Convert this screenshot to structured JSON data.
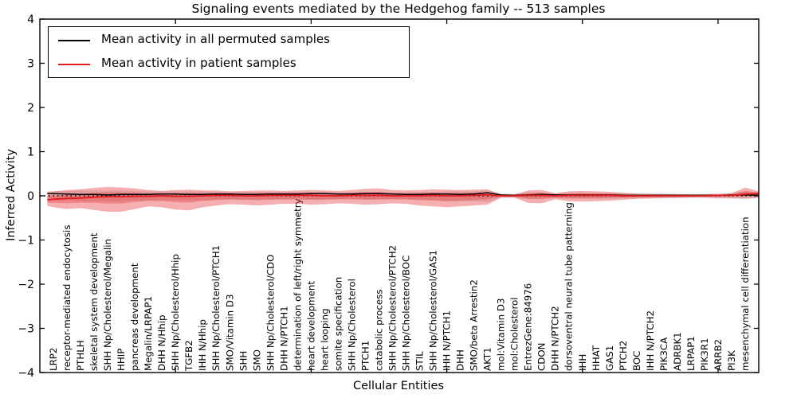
{
  "title": "Signaling events mediated by the Hedgehog family -- 513 samples",
  "chart_data": {
    "type": "line",
    "title": "Signaling events mediated by the Hedgehog family -- 513 samples",
    "xlabel": "Cellular Entities",
    "ylabel": "Inferred Activity",
    "ylim": [
      -4,
      4
    ],
    "xlim": [
      0,
      53
    ],
    "yticks": [
      4,
      3,
      2,
      1,
      0,
      -1,
      -2,
      -3,
      -4
    ],
    "x_major_ticks": [
      10,
      20,
      30,
      40,
      50
    ],
    "grid": false,
    "legend_position": "upper left",
    "legend": [
      {
        "label": "Mean activity in all permuted samples",
        "color": "#000000"
      },
      {
        "label": "Mean activity in patient samples",
        "color": "#e31a1c"
      }
    ],
    "colors": {
      "permuted_line": "#000000",
      "patient_line": "#e31a1c",
      "patient_band": "rgba(227,26,28,0.35)",
      "patient_band_inner": "rgba(227,26,28,0.28)",
      "permuted_band": "rgba(110,110,110,0.18)",
      "zero_line": "#000000"
    },
    "categories": [
      "LRP2",
      "receptor-mediated endocytosis",
      "PTHLH",
      "skeletal system development",
      "SHH Np/Cholesterol/Megalin",
      "HHIP",
      "pancreas development",
      "Megalin/LRPAP1",
      "DHH N/Hhip",
      "SHH Np/Cholesterol/Hhip",
      "TGFB2",
      "IHH N/Hhip",
      "SHH Np/Cholesterol/PTCH1",
      "SMO/Vitamin D3",
      "SHH",
      "SMO",
      "SHH Np/Cholesterol/CDO",
      "DHH N/PTCH1",
      "determination of left/right symmetry",
      "heart development",
      "heart looping",
      "somite specification",
      "SHH Np/Cholesterol",
      "PTCH1",
      "catabolic process",
      "SHH Np/Cholesterol/PTCH2",
      "SHH Np/Cholesterol/BOC",
      "STIL",
      "SHH Np/Cholesterol/GAS1",
      "IHH N/PTCH1",
      "DHH",
      "SMO/beta Arrestin2",
      "AKT1",
      "mol:Vitamin D3",
      "mol:Cholesterol",
      "EntrezGene:84976",
      "CDON",
      "DHH N/PTCH2",
      "dorsoventral neural tube patterning",
      "IHH",
      "HHAT",
      "GAS1",
      "PTCH2",
      "BOC",
      "IHH N/PTCH2",
      "PIK3CA",
      "ADRBK1",
      "LRPAP1",
      "PIK3R1",
      "ARRB2",
      "PI3K",
      "mesenchymal cell differentiation"
    ],
    "series": [
      {
        "name": "Mean activity in all permuted samples",
        "values": [
          0.05,
          0.04,
          0.03,
          0.03,
          0.02,
          0.03,
          0.03,
          0.03,
          0.04,
          0.04,
          0.03,
          0.03,
          0.04,
          0.04,
          0.03,
          0.03,
          0.04,
          0.04,
          0.04,
          0.05,
          0.05,
          0.04,
          0.04,
          0.05,
          0.05,
          0.04,
          0.03,
          0.03,
          0.04,
          0.04,
          0.03,
          0.04,
          0.07,
          0.02,
          0.01,
          0.02,
          0.03,
          0.02,
          0.02,
          0.02,
          0.02,
          0.02,
          0.01,
          0.01,
          0.01,
          0.01,
          0.01,
          0.01,
          0.01,
          0.01,
          0.02,
          0.02
        ]
      },
      {
        "name": "Mean activity in patient samples",
        "values": [
          -0.08,
          -0.06,
          -0.05,
          -0.03,
          -0.02,
          -0.02,
          -0.01,
          -0.01,
          0,
          -0.01,
          -0.01,
          0,
          0.01,
          0.01,
          0,
          0,
          0.01,
          0.01,
          0.01,
          0.01,
          0,
          0,
          0.01,
          0.01,
          0.01,
          0,
          0,
          0,
          0.01,
          0,
          0,
          0.01,
          0.02,
          0,
          0,
          0.01,
          0.01,
          0,
          0.01,
          0.01,
          0.01,
          0.01,
          0,
          0,
          0,
          0,
          0,
          0,
          0,
          0.01,
          0.01,
          0.04
        ]
      }
    ],
    "patient_band": {
      "hi": [
        0.1,
        0.13,
        0.15,
        0.18,
        0.2,
        0.19,
        0.17,
        0.13,
        0.11,
        0.13,
        0.14,
        0.12,
        0.12,
        0.1,
        0.11,
        0.12,
        0.12,
        0.11,
        0.12,
        0.13,
        0.12,
        0.11,
        0.13,
        0.16,
        0.17,
        0.13,
        0.12,
        0.13,
        0.15,
        0.14,
        0.13,
        0.14,
        0.15,
        0.03,
        0.03,
        0.12,
        0.13,
        0.06,
        0.1,
        0.11,
        0.1,
        0.09,
        0.07,
        0.05,
        0.04,
        0.04,
        0.03,
        0.03,
        0.03,
        0.04,
        0.06,
        0.19
      ],
      "lo": [
        -0.26,
        -0.3,
        -0.28,
        -0.32,
        -0.36,
        -0.36,
        -0.3,
        -0.24,
        -0.26,
        -0.31,
        -0.33,
        -0.26,
        -0.22,
        -0.19,
        -0.2,
        -0.22,
        -0.2,
        -0.18,
        -0.18,
        -0.2,
        -0.19,
        -0.17,
        -0.18,
        -0.2,
        -0.19,
        -0.17,
        -0.18,
        -0.22,
        -0.24,
        -0.26,
        -0.24,
        -0.22,
        -0.2,
        -0.04,
        -0.04,
        -0.16,
        -0.17,
        -0.08,
        -0.12,
        -0.13,
        -0.12,
        -0.11,
        -0.09,
        -0.07,
        -0.06,
        -0.05,
        -0.05,
        -0.04,
        -0.04,
        -0.05,
        -0.05,
        -0.06
      ]
    },
    "permuted_band": {
      "hi": [
        0.1,
        0.11,
        0.12,
        0.12,
        0.12,
        0.12,
        0.11,
        0.1,
        0.1,
        0.1,
        0.1,
        0.1,
        0.09,
        0.09,
        0.09,
        0.09,
        0.09,
        0.09,
        0.09,
        0.09,
        0.09,
        0.08,
        0.08,
        0.09,
        0.09,
        0.08,
        0.08,
        0.09,
        0.09,
        0.1,
        0.1,
        0.1,
        0.12,
        0.05,
        0.05,
        0.08,
        0.08,
        0.06,
        0.07,
        0.07,
        0.07,
        0.07,
        0.06,
        0.06,
        0.06,
        0.06,
        0.05,
        0.05,
        0.05,
        0.06,
        0.07,
        0.1
      ],
      "lo": [
        -0.1,
        -0.11,
        -0.12,
        -0.12,
        -0.12,
        -0.12,
        -0.11,
        -0.1,
        -0.1,
        -0.1,
        -0.1,
        -0.1,
        -0.09,
        -0.09,
        -0.09,
        -0.09,
        -0.09,
        -0.09,
        -0.09,
        -0.09,
        -0.09,
        -0.08,
        -0.08,
        -0.09,
        -0.09,
        -0.08,
        -0.08,
        -0.09,
        -0.1,
        -0.13,
        -0.13,
        -0.12,
        -0.14,
        -0.05,
        -0.05,
        -0.08,
        -0.08,
        -0.06,
        -0.07,
        -0.07,
        -0.07,
        -0.07,
        -0.06,
        -0.06,
        -0.06,
        -0.06,
        -0.05,
        -0.05,
        -0.05,
        -0.06,
        -0.07,
        -0.08
      ]
    },
    "band_edges": {
      "left": {
        "permuted": 0.05,
        "patient": -0.09,
        "patient_hi": 0.09,
        "patient_lo": -0.23,
        "permuted_hi": 0.1,
        "permuted_lo": -0.1
      },
      "right": {
        "permuted": 0.01,
        "patient": 0.05,
        "patient_hi": 0.1,
        "patient_lo": -0.04,
        "permuted_hi": 0.07,
        "permuted_lo": -0.06
      }
    }
  }
}
